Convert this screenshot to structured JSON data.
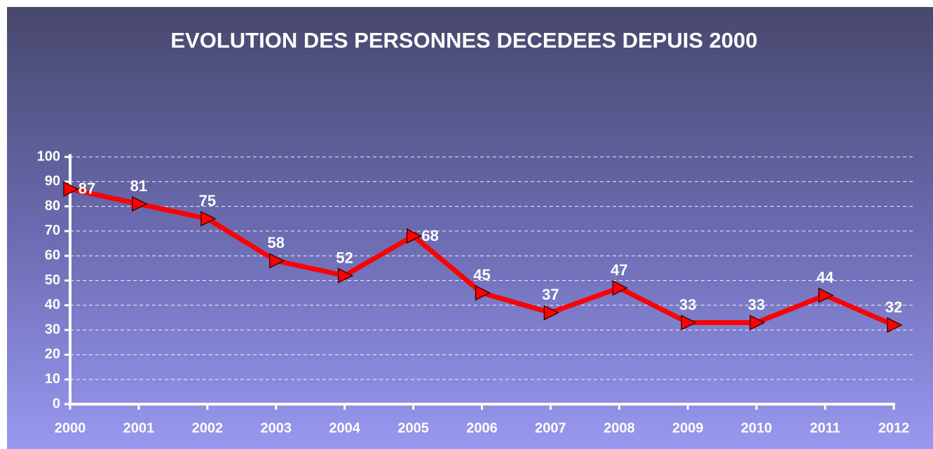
{
  "chart_data": {
    "type": "line",
    "title": "EVOLUTION DES PERSONNES DECEDEES DEPUIS 2000",
    "categories": [
      "2000",
      "2001",
      "2002",
      "2003",
      "2004",
      "2005",
      "2006",
      "2007",
      "2008",
      "2009",
      "2010",
      "2011",
      "2012"
    ],
    "values": [
      87,
      81,
      75,
      58,
      52,
      68,
      45,
      37,
      47,
      33,
      33,
      44,
      32
    ],
    "color": "#ff0000",
    "ylim": [
      0,
      100
    ],
    "yticks": [
      0,
      10,
      20,
      30,
      40,
      50,
      60,
      70,
      80,
      90,
      100
    ],
    "grid": true
  }
}
